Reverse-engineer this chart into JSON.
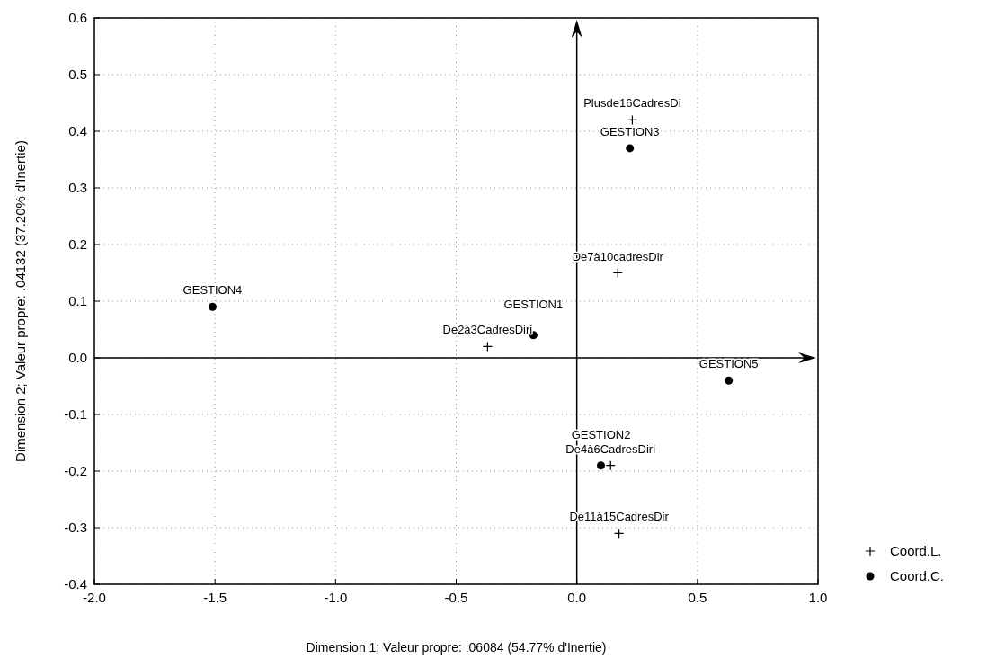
{
  "chart_data": {
    "type": "scatter",
    "xlabel": "Dimension 1; Valeur propre: .06084 (54.77% d'Inertie)",
    "ylabel": "Dimension 2; Valeur propre: .04132 (37.20% d'Inertie)",
    "xlim": [
      -2.0,
      1.0
    ],
    "ylim": [
      -0.4,
      0.6
    ],
    "xticks": [
      {
        "value": -2,
        "label": "-2.0"
      },
      {
        "value": -1.5,
        "label": "-1.5"
      },
      {
        "value": -1,
        "label": "-1.0"
      },
      {
        "value": -0.5,
        "label": "-0.5"
      },
      {
        "value": 0,
        "label": "0.0"
      },
      {
        "value": 0.5,
        "label": "0.5"
      },
      {
        "value": 1,
        "label": "1.0"
      }
    ],
    "yticks": [
      {
        "value": -0.4,
        "label": "-0.4"
      },
      {
        "value": -0.3,
        "label": "-0.3"
      },
      {
        "value": -0.2,
        "label": "-0.2"
      },
      {
        "value": -0.1,
        "label": "-0.1"
      },
      {
        "value": 0,
        "label": "0.0"
      },
      {
        "value": 0.1,
        "label": "0.1"
      },
      {
        "value": 0.2,
        "label": "0.2"
      },
      {
        "value": 0.3,
        "label": "0.3"
      },
      {
        "value": 0.4,
        "label": "0.4"
      },
      {
        "value": 0.5,
        "label": "0.5"
      },
      {
        "value": 0.6,
        "label": "0.6"
      }
    ],
    "grid": true,
    "legend": "bottom right",
    "series": [
      {
        "name": "Coord.L.",
        "color": "#000000",
        "marker": "cross",
        "x": [
          0.23,
          0.17,
          -0.37,
          0.14,
          0.175
        ],
        "values": [
          0.42,
          0.15,
          0.02,
          -0.19,
          -0.31
        ]
      },
      {
        "name": "Coord.C.",
        "color": "#000000",
        "marker": "circle",
        "x": [
          0.22,
          -1.51,
          -0.18,
          0.63,
          0.1
        ],
        "values": [
          0.37,
          0.09,
          0.04,
          -0.04,
          -0.19
        ]
      }
    ],
    "annotations": [
      {
        "text": "Plusde16CadresDi",
        "x": 0.23,
        "y": 0.42
      },
      {
        "text": "De7à10cadresDir",
        "x": 0.17,
        "y": 0.15
      },
      {
        "text": "De2à3CadresDiri",
        "x": -0.37,
        "y": 0.02
      },
      {
        "text": "De4à6CadresDiri",
        "x": 0.14,
        "y": -0.19
      },
      {
        "text": "De11à15CadresDir",
        "x": 0.175,
        "y": -0.31
      },
      {
        "text": "GESTION3",
        "x": 0.22,
        "y": 0.37
      },
      {
        "text": "GESTION4",
        "x": -1.51,
        "y": 0.09
      },
      {
        "text": "GESTION1",
        "x": -0.18,
        "y": 0.04
      },
      {
        "text": "GESTION5",
        "x": 0.63,
        "y": -0.04
      },
      {
        "text": "GESTION2",
        "x": 0.1,
        "y": -0.19
      }
    ]
  }
}
